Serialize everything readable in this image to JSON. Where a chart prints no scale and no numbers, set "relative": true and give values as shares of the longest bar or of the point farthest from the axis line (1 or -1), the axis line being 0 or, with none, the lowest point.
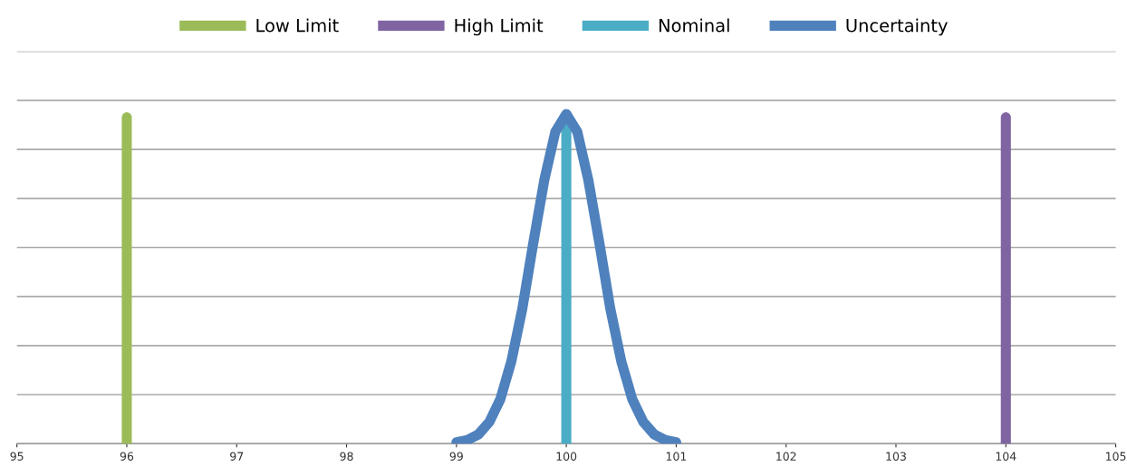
{
  "chart_data": {
    "type": "line",
    "relative": true,
    "xlim": [
      95,
      105
    ],
    "xticks": [
      95,
      96,
      97,
      98,
      99,
      100,
      101,
      102,
      103,
      104,
      105
    ],
    "grid": "y",
    "legend": "top",
    "marker": "none",
    "line_style": "solid",
    "series": [
      {
        "name": "Low Limit",
        "color": "#9bbb59",
        "x": [
          96,
          96
        ],
        "values": [
          0,
          0.99
        ]
      },
      {
        "name": "High Limit",
        "color": "#8064a2",
        "x": [
          104,
          104
        ],
        "values": [
          0,
          0.99
        ]
      },
      {
        "name": "Nominal",
        "color": "#4bacc6",
        "x": [
          100,
          100
        ],
        "values": [
          0,
          0.99
        ]
      },
      {
        "name": "Uncertainty",
        "color": "#4f81bd",
        "x": [
          99,
          99.1,
          99.2,
          99.3,
          99.4,
          99.5,
          99.6,
          99.7,
          99.8,
          99.9,
          100,
          100.1,
          100.2,
          100.3,
          100.4,
          100.5,
          100.6,
          100.7,
          100.8,
          100.9,
          101
        ],
        "values": [
          0.004,
          0.011,
          0.028,
          0.066,
          0.135,
          0.25,
          0.41,
          0.61,
          0.8,
          0.946,
          1,
          0.946,
          0.8,
          0.61,
          0.41,
          0.25,
          0.135,
          0.066,
          0.028,
          0.011,
          0.004
        ]
      }
    ]
  }
}
